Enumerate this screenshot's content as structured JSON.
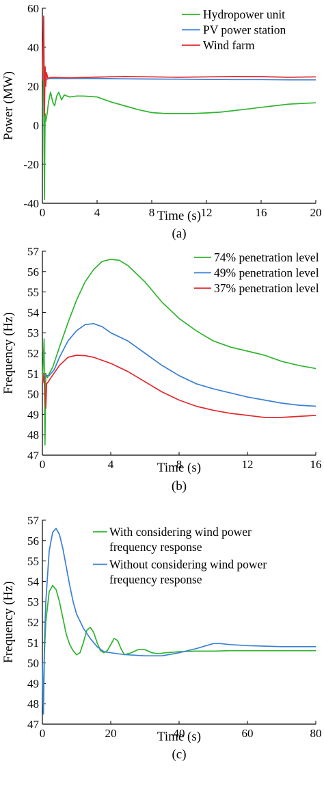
{
  "chart_data": [
    {
      "type": "line",
      "caption": "(a)",
      "xlabel": "Time (s)",
      "ylabel": "Power (MW)",
      "xlim": [
        0,
        20
      ],
      "ylim": [
        -40,
        60
      ],
      "xticks": [
        "0",
        "4",
        "8",
        "12",
        "16",
        "20"
      ],
      "yticks": [
        "-40",
        "-20",
        "0",
        "20",
        "40",
        "60"
      ],
      "legend_position": "top-right",
      "series": [
        {
          "name": "Hydropower unit",
          "color": "#2db52d",
          "x": [
            0,
            0.05,
            0.1,
            0.15,
            0.2,
            0.25,
            0.3,
            0.35,
            0.45,
            0.6,
            0.75,
            0.9,
            1.05,
            1.2,
            1.4,
            1.6,
            1.8,
            2.0,
            2.5,
            3,
            4,
            5,
            6,
            7,
            8,
            9,
            10,
            11,
            12,
            13,
            14,
            15,
            16,
            17,
            18,
            19,
            20
          ],
          "values": [
            24,
            34,
            10,
            -38,
            6,
            2,
            4,
            6,
            12,
            17,
            12,
            10,
            15,
            17,
            13,
            15.5,
            15,
            14.5,
            15,
            15,
            14.5,
            12,
            10,
            8,
            6.5,
            6,
            6,
            6,
            6.3,
            6.7,
            7.5,
            8.3,
            9.2,
            10,
            10.8,
            11.2,
            11.5
          ]
        },
        {
          "name": "PV power station",
          "color": "#3a7fd5",
          "x": [
            0,
            0.1,
            0.2,
            0.3,
            0.5,
            1,
            2,
            4,
            6,
            8,
            10,
            12,
            14,
            16,
            18,
            20
          ],
          "values": [
            23,
            26,
            22,
            23.5,
            24,
            24,
            24,
            24,
            23.8,
            23.7,
            23.6,
            23.5,
            23.4,
            23.4,
            23.3,
            23.3
          ]
        },
        {
          "name": "Wind farm",
          "color": "#e0282e",
          "x": [
            0,
            0.1,
            0.15,
            0.2,
            0.25,
            0.3,
            0.4,
            0.6,
            1,
            2,
            4,
            6,
            8,
            10,
            12,
            14,
            16,
            18,
            20
          ],
          "values": [
            23,
            56,
            5,
            30,
            20,
            27,
            24,
            24.5,
            24.5,
            24.3,
            24.7,
            25,
            24.8,
            24.6,
            24.8,
            25,
            24.9,
            24.6,
            24.8
          ]
        }
      ]
    },
    {
      "type": "line",
      "caption": "(b)",
      "xlabel": "Time (s)",
      "ylabel": "Frequency (Hz)",
      "xlim": [
        0,
        16
      ],
      "ylim": [
        47,
        57
      ],
      "xticks": [
        "0",
        "4",
        "8",
        "12",
        "16"
      ],
      "yticks": [
        "47",
        "48",
        "49",
        "50",
        "51",
        "52",
        "53",
        "54",
        "55",
        "56",
        "57"
      ],
      "legend_position": "top-right",
      "series": [
        {
          "name": "74% penetration level",
          "color": "#2db52d",
          "x": [
            0,
            0.1,
            0.15,
            0.2,
            0.3,
            0.4,
            0.6,
            1,
            1.5,
            2,
            2.5,
            3,
            3.5,
            4,
            4.5,
            5,
            6,
            7,
            8,
            9,
            10,
            11,
            12,
            13,
            14,
            15,
            16
          ],
          "values": [
            50.5,
            52.7,
            47.5,
            51,
            50.8,
            51,
            51.3,
            52.3,
            53.5,
            54.6,
            55.5,
            56.1,
            56.5,
            56.6,
            56.55,
            56.3,
            55.5,
            54.5,
            53.7,
            53.1,
            52.6,
            52.3,
            52.1,
            51.9,
            51.6,
            51.4,
            51.25
          ]
        },
        {
          "name": "49% penetration level",
          "color": "#3a7fd5",
          "x": [
            0,
            0.2,
            0.4,
            0.7,
            1,
            1.5,
            2,
            2.5,
            3,
            3.5,
            4,
            5,
            6,
            7,
            8,
            9,
            10,
            11,
            12,
            13,
            14,
            15,
            16
          ],
          "values": [
            50.5,
            50.9,
            50.9,
            51.2,
            51.8,
            52.6,
            53.1,
            53.4,
            53.45,
            53.3,
            53.0,
            52.6,
            52.0,
            51.4,
            50.9,
            50.5,
            50.25,
            50.05,
            49.85,
            49.7,
            49.55,
            49.45,
            49.4
          ]
        },
        {
          "name": "37% penetration level",
          "color": "#e0282e",
          "x": [
            0,
            0.1,
            0.2,
            0.25,
            0.35,
            0.5,
            1,
            1.5,
            2,
            2.5,
            3,
            4,
            5,
            6,
            7,
            8,
            9,
            10,
            11,
            12,
            13,
            14,
            15,
            16
          ],
          "values": [
            50.5,
            51.0,
            49.3,
            50.5,
            50.6,
            50.8,
            51.4,
            51.8,
            51.9,
            51.88,
            51.8,
            51.5,
            51.1,
            50.6,
            50.1,
            49.7,
            49.4,
            49.2,
            49.05,
            48.95,
            48.85,
            48.85,
            48.9,
            48.95
          ]
        }
      ]
    },
    {
      "type": "line",
      "caption": "(c)",
      "xlabel": "Time (s)",
      "ylabel": "Frequency (Hz)",
      "xlim": [
        0,
        80
      ],
      "ylim": [
        47,
        57
      ],
      "xticks": [
        "0",
        "20",
        "40",
        "60",
        "80"
      ],
      "yticks": [
        "47",
        "48",
        "49",
        "50",
        "51",
        "52",
        "53",
        "54",
        "55",
        "56",
        "57"
      ],
      "legend_position": "top-right",
      "series": [
        {
          "name": "With considering wind power frequency response",
          "color": "#2db52d",
          "x": [
            0,
            0.3,
            0.6,
            1,
            2,
            3,
            4,
            5,
            6,
            7,
            8,
            9,
            10,
            11,
            12,
            13,
            14,
            15,
            16,
            17,
            18,
            19,
            20,
            21,
            22,
            23,
            24,
            26,
            28,
            30,
            32,
            34,
            36,
            40,
            45,
            50,
            55,
            60,
            70,
            80
          ],
          "values": [
            50,
            47.5,
            50.5,
            52,
            53.5,
            53.8,
            53.6,
            53.0,
            52.2,
            51.4,
            50.9,
            50.6,
            50.4,
            50.5,
            51.0,
            51.6,
            51.75,
            51.5,
            51.0,
            50.6,
            50.5,
            50.6,
            50.9,
            51.2,
            51.1,
            50.7,
            50.4,
            50.5,
            50.65,
            50.65,
            50.5,
            50.45,
            50.5,
            50.55,
            50.58,
            50.58,
            50.6,
            50.6,
            50.6,
            50.6
          ]
        },
        {
          "name": "Without considering wind power frequency response",
          "color": "#3a7fd5",
          "x": [
            0,
            0.3,
            0.6,
            1,
            2,
            3,
            4,
            5,
            6,
            7,
            8,
            9,
            10,
            12,
            14,
            16,
            18,
            20,
            22,
            25,
            30,
            35,
            40,
            45,
            50,
            52,
            55,
            60,
            70,
            80
          ],
          "values": [
            50,
            47.5,
            51,
            53,
            55.5,
            56.4,
            56.6,
            56.3,
            55.6,
            54.7,
            53.8,
            53.0,
            52.4,
            51.7,
            51.2,
            50.8,
            50.55,
            50.5,
            50.45,
            50.4,
            50.35,
            50.35,
            50.5,
            50.7,
            50.95,
            50.95,
            50.9,
            50.85,
            50.8,
            50.8
          ]
        }
      ]
    }
  ]
}
